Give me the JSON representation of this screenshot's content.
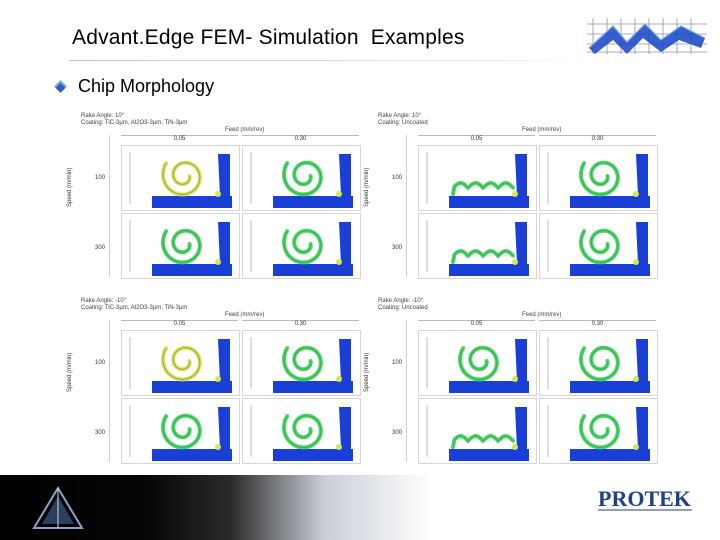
{
  "header": {
    "title": "Advant.Edge FEM- Simulation  Examples"
  },
  "bullet": {
    "text": "Chip Morphology"
  },
  "quadrants": [
    {
      "rake": "Rake Angle: 10°",
      "coating": "Coating: TiC-3µm, Al2O3-3µm, TiN-3µm",
      "feed_label": "Feed (mm/rev)",
      "speed_label": "Speed (m/min)",
      "feeds": [
        "0.05",
        "0.30"
      ],
      "speeds": [
        "100",
        "300"
      ]
    },
    {
      "rake": "Rake Angle: 10°",
      "coating": "Coating: Uncoated",
      "feed_label": "Feed (mm/rev)",
      "speed_label": "Speed (m/min)",
      "feeds": [
        "0.05",
        "0.30"
      ],
      "speeds": [
        "100",
        "300"
      ]
    },
    {
      "rake": "Rake Angle: -10°",
      "coating": "Coating: TiC-3µm, Al2O3-3µm, TiN-3µm",
      "feed_label": "Feed (mm/rev)",
      "speed_label": "Speed (m/min)",
      "feeds": [
        "0.05",
        "0.30"
      ],
      "speeds": [
        "100",
        "300"
      ]
    },
    {
      "rake": "Rake Angle: -10°",
      "coating": "Coating: Uncoated",
      "feed_label": "Feed (mm/rev)",
      "speed_label": "Speed (m/min)",
      "feeds": [
        "0.05",
        "0.30"
      ],
      "speeds": [
        "100",
        "300"
      ]
    }
  ],
  "footer": {
    "logo_text": "PROTEK"
  },
  "colors": {
    "workpiece": "#1a3fd6",
    "chip_green": "#3ccf5a",
    "chip_yellow": "#e8d94a",
    "accent": "#2d5fb8"
  },
  "icons": {
    "bullet": "diamond-bullet-icon",
    "top_logo": "grid-logo-icon",
    "footer_prism": "prism-icon"
  }
}
